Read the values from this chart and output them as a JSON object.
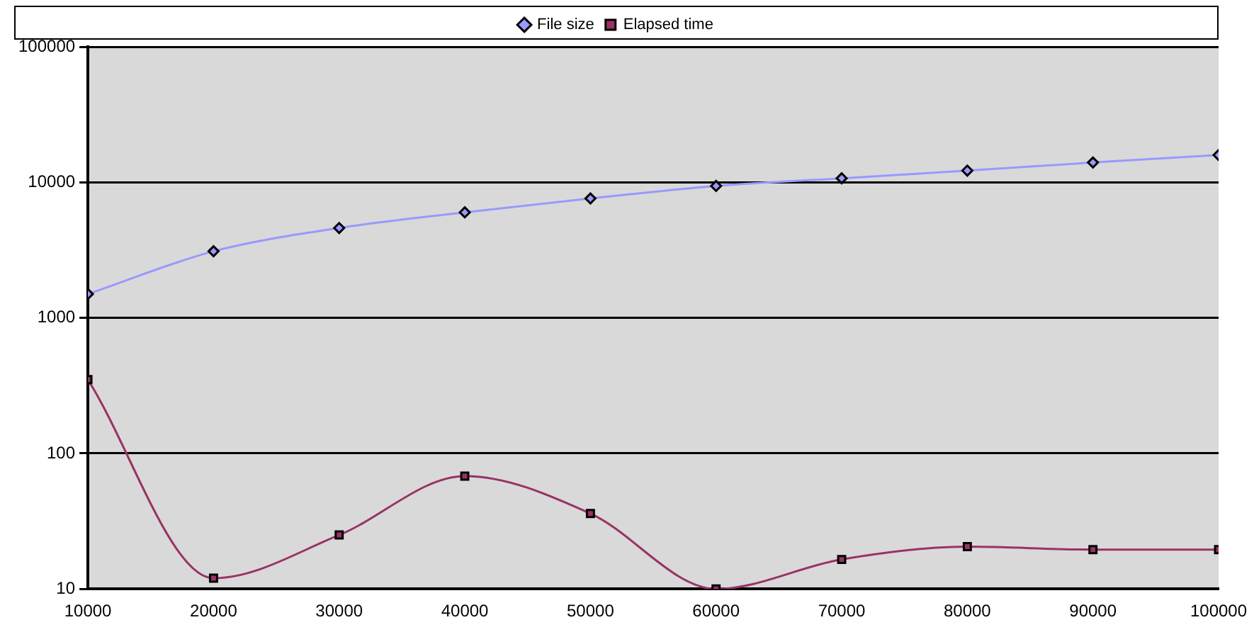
{
  "chart_data": {
    "type": "line",
    "x": [
      10000,
      20000,
      30000,
      40000,
      50000,
      60000,
      70000,
      80000,
      90000,
      100000
    ],
    "series": [
      {
        "name": "File size",
        "color": "#9999ff",
        "marker": "diamond",
        "values": [
          1500,
          3100,
          4600,
          6000,
          7600,
          9400,
          10700,
          12200,
          14000,
          15900
        ]
      },
      {
        "name": "Elapsed time",
        "color": "#993366",
        "marker": "square",
        "values": [
          350,
          12,
          25,
          68,
          36,
          10,
          16.5,
          20.5,
          19.5,
          19.5
        ]
      }
    ],
    "xlim": [
      10000,
      100000
    ],
    "xticks": [
      10000,
      20000,
      30000,
      40000,
      50000,
      60000,
      70000,
      80000,
      90000,
      100000
    ],
    "ylim": [
      10,
      100000
    ],
    "yticks": [
      10,
      100,
      1000,
      10000,
      100000
    ],
    "log": "y",
    "grid": "y",
    "legend": "top"
  }
}
